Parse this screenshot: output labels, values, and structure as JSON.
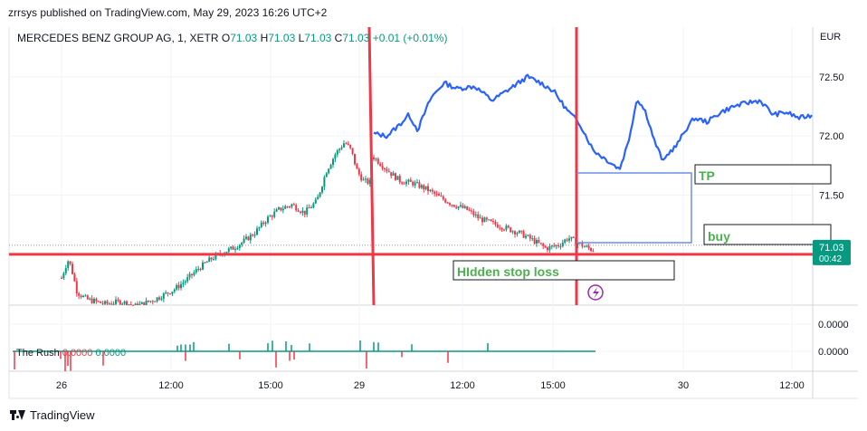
{
  "header": {
    "published": "zrrsys published on TradingView.com, May 29, 2023 16:26 UTC+2"
  },
  "legend": {
    "symbol": "MERCEDES BENZ GROUP AG, 1, XETR",
    "open_label": "O",
    "open": "71.03",
    "high_label": "H",
    "high": "71.03",
    "low_label": "L",
    "low": "71.03",
    "close_label": "C",
    "close": "71.03",
    "change": "+0.01 (+0.01%)"
  },
  "indicator": {
    "name": "The Rush",
    "value1": "0.0000",
    "value2": "0.0000"
  },
  "footer": {
    "brand": "TradingView"
  },
  "colors": {
    "up": "#089981",
    "down": "#f23645",
    "overlay_line": "#2962ff",
    "annotation_line": "#f23645",
    "tp_box": "#6a8ee8",
    "label_text": "#4caf50",
    "grid": "#f0f3fa",
    "axis_text": "#131722"
  },
  "chart_data": {
    "type": "candlestick",
    "currency": "EUR",
    "price_ticks": [
      "72.50",
      "72.00",
      "71.50"
    ],
    "price_range": [
      70.57,
      72.92
    ],
    "current_price": "71.03",
    "countdown": "00:42",
    "x_ticks": [
      "26",
      "12:00",
      "15:00",
      "29",
      "12:00",
      "15:00",
      "30",
      "12:00"
    ],
    "indicator_ticks": [
      "0.0000",
      "0.0000"
    ],
    "annotations": {
      "horizontal_support": 71.0,
      "tp_label": "TP",
      "buy_label": "buy",
      "stop_label": "HIdden stop loss"
    },
    "price_series": [
      [
        0.0,
        70.8
      ],
      [
        0.02,
        70.95
      ],
      [
        0.03,
        70.9
      ],
      [
        0.05,
        70.68
      ],
      [
        0.08,
        70.62
      ],
      [
        0.14,
        70.58
      ],
      [
        0.19,
        70.6
      ],
      [
        0.24,
        70.56
      ],
      [
        0.3,
        70.62
      ],
      [
        0.36,
        70.7
      ],
      [
        0.4,
        70.78
      ],
      [
        0.44,
        70.88
      ],
      [
        0.48,
        70.96
      ],
      [
        0.52,
        71.02
      ],
      [
        0.55,
        71.05
      ],
      [
        0.58,
        71.1
      ],
      [
        0.62,
        71.18
      ],
      [
        0.66,
        71.3
      ],
      [
        0.7,
        71.38
      ],
      [
        0.74,
        71.42
      ],
      [
        0.78,
        71.35
      ],
      [
        0.82,
        71.45
      ],
      [
        0.85,
        71.7
      ],
      [
        0.88,
        71.85
      ],
      [
        0.91,
        71.95
      ],
      [
        0.93,
        71.88
      ],
      [
        0.95,
        71.7
      ],
      [
        0.97,
        71.62
      ],
      [
        1.0,
        71.6
      ]
    ],
    "price_series_day2": [
      [
        0.0,
        71.82
      ],
      [
        0.04,
        71.75
      ],
      [
        0.08,
        71.68
      ],
      [
        0.12,
        71.62
      ],
      [
        0.18,
        71.6
      ],
      [
        0.24,
        71.55
      ],
      [
        0.3,
        71.48
      ],
      [
        0.36,
        71.42
      ],
      [
        0.42,
        71.38
      ],
      [
        0.48,
        71.3
      ],
      [
        0.54,
        71.26
      ],
      [
        0.6,
        71.22
      ],
      [
        0.66,
        71.18
      ],
      [
        0.72,
        71.12
      ],
      [
        0.78,
        71.05
      ],
      [
        0.84,
        71.08
      ],
      [
        0.88,
        71.14
      ],
      [
        0.92,
        71.1
      ],
      [
        0.96,
        71.06
      ],
      [
        1.0,
        71.03
      ]
    ],
    "overlay_series": [
      [
        0.0,
        72.02
      ],
      [
        0.03,
        72.0
      ],
      [
        0.06,
        72.1
      ],
      [
        0.08,
        72.18
      ],
      [
        0.1,
        72.05
      ],
      [
        0.13,
        72.32
      ],
      [
        0.16,
        72.45
      ],
      [
        0.19,
        72.4
      ],
      [
        0.23,
        72.42
      ],
      [
        0.27,
        72.3
      ],
      [
        0.31,
        72.4
      ],
      [
        0.35,
        72.5
      ],
      [
        0.38,
        72.45
      ],
      [
        0.41,
        72.38
      ],
      [
        0.44,
        72.22
      ],
      [
        0.47,
        72.1
      ],
      [
        0.5,
        71.88
      ],
      [
        0.53,
        71.8
      ],
      [
        0.56,
        71.72
      ],
      [
        0.58,
        71.95
      ],
      [
        0.6,
        72.32
      ],
      [
        0.62,
        72.2
      ],
      [
        0.64,
        71.95
      ],
      [
        0.66,
        71.78
      ],
      [
        0.67,
        71.85
      ],
      [
        0.69,
        71.92
      ],
      [
        0.71,
        72.05
      ],
      [
        0.73,
        72.15
      ],
      [
        0.76,
        72.12
      ],
      [
        0.79,
        72.2
      ],
      [
        0.82,
        72.25
      ],
      [
        0.85,
        72.28
      ],
      [
        0.88,
        72.3
      ],
      [
        0.91,
        72.18
      ],
      [
        0.94,
        72.2
      ],
      [
        0.97,
        72.15
      ],
      [
        1.0,
        72.18
      ]
    ]
  }
}
